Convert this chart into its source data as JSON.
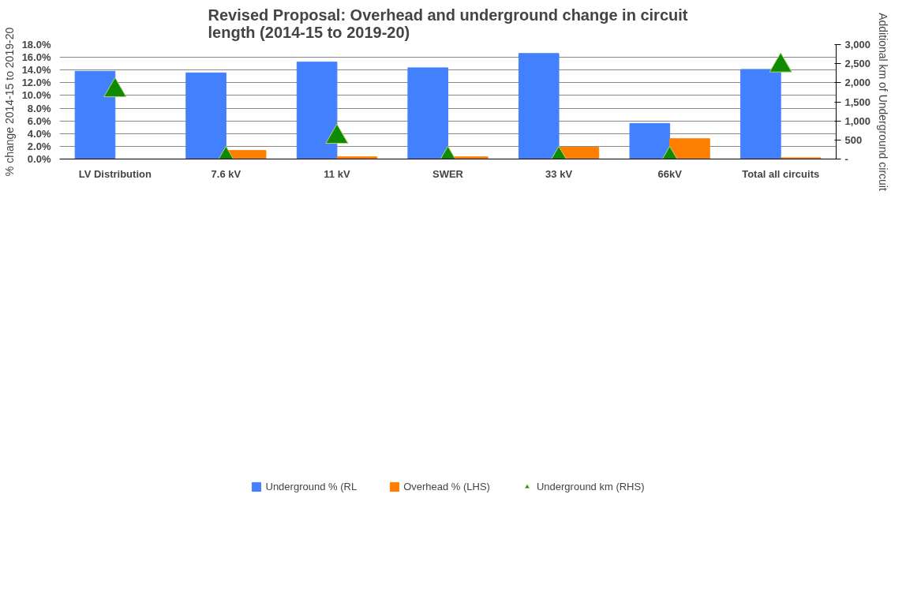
{
  "chart_data": {
    "type": "bar",
    "title": "Revised Proposal: Overhead and underground change in circuit\nlength (2014-15 to 2019-20)",
    "ylabel": "% change 2014-15 to 2019-20",
    "y2label": "Additional km of Underground circuit",
    "categories": [
      "LV Distribution",
      "7.6 kV",
      "11 kV",
      "SWER",
      "33 kV",
      "66kV",
      "Total all circuits"
    ],
    "series": [
      {
        "name": "Underground % (RL",
        "color": "#4280fe",
        "values": [
          13.8,
          13.55,
          15.25,
          14.35,
          16.6,
          5.6,
          14.1
        ]
      },
      {
        "name": "Overhead % (LHS)",
        "color": "#fe7f00",
        "values": [
          null,
          1.35,
          0.35,
          0.35,
          1.85,
          3.2,
          0.2
        ]
      },
      {
        "name": "Underground km (RHS)",
        "color": "#108a00",
        "type": "scatter",
        "marker": "triangle",
        "axis": "y2",
        "values": [
          1800,
          0,
          580,
          0,
          0,
          0,
          2450
        ]
      }
    ],
    "ylim": [
      0,
      18
    ],
    "yticks": [
      {
        "value": 0,
        "label": "0.0%"
      },
      {
        "value": 2,
        "label": "2.0%"
      },
      {
        "value": 4,
        "label": "4.0%"
      },
      {
        "value": 6,
        "label": "6.0%"
      },
      {
        "value": 8,
        "label": "8.0%"
      },
      {
        "value": 10,
        "label": "10.0%"
      },
      {
        "value": 12,
        "label": "12.0%"
      },
      {
        "value": 14,
        "label": "14.0%"
      },
      {
        "value": 16,
        "label": "16.0%"
      },
      {
        "value": 18,
        "label": "18.0%"
      }
    ],
    "y2lim": [
      0,
      3000
    ],
    "y2ticks": [
      {
        "value": 0,
        "label": "-"
      },
      {
        "value": 500,
        "label": "500"
      },
      {
        "value": 1000,
        "label": "1,000"
      },
      {
        "value": 1500,
        "label": "1,500"
      },
      {
        "value": 2000,
        "label": "2,000"
      },
      {
        "value": 2500,
        "label": "2,500"
      },
      {
        "value": 3000,
        "label": "3,000"
      }
    ],
    "grid": "y",
    "legend": "bottom"
  }
}
